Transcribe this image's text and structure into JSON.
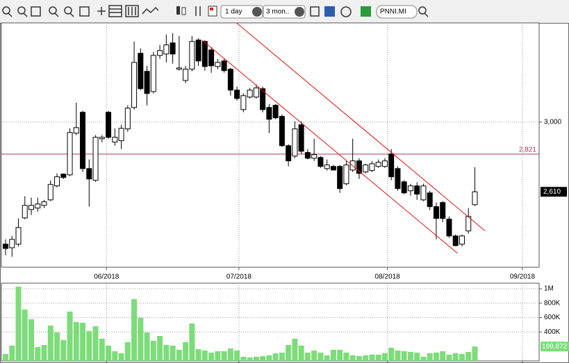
{
  "toolbar": {
    "interval": "1 day",
    "range": "3 mon..",
    "symbol": "PNNI.MI"
  },
  "chart_data": [
    {
      "type": "candlestick",
      "categories": [
        null,
        null,
        null,
        null,
        null,
        null,
        null,
        null,
        null,
        null,
        null,
        null,
        null,
        null,
        null,
        null,
        null,
        null,
        null,
        null,
        null,
        null,
        null,
        null,
        null,
        null,
        null,
        null,
        null,
        null,
        null,
        null,
        null,
        null,
        null,
        null,
        null,
        null,
        null,
        null,
        null,
        null,
        null,
        null,
        null,
        null,
        null,
        null,
        null,
        null,
        null,
        null,
        null,
        null,
        null,
        null,
        null,
        null,
        null,
        null,
        null,
        null,
        null,
        null,
        null,
        null,
        null,
        null,
        null,
        null,
        null,
        null,
        null,
        null
      ],
      "open": [
        2317,
        2297,
        2317,
        2464,
        2511,
        2519,
        2534,
        2565,
        2643,
        2709,
        2705,
        2938,
        3055,
        2740,
        2674,
        2907,
        3055,
        2888,
        2896,
        2962,
        3082,
        3385,
        3284,
        3171,
        3373,
        3381,
        3443,
        3296,
        3233,
        3296,
        3459,
        3451,
        3404,
        3311,
        3342,
        3296,
        3179,
        3070,
        3140,
        3140,
        3187,
        3082,
        3094,
        3032,
        2868,
        2810,
        2985,
        2830,
        2798,
        2802,
        2740,
        2752,
        2752,
        2655,
        2732,
        2783,
        2721,
        2729,
        2752,
        2752,
        2822,
        2740,
        2666,
        2616,
        2643,
        2565,
        2604,
        2527,
        2550,
        2457,
        2363,
        2317,
        2391,
        2538
      ],
      "high": [
        2344,
        2363,
        2461,
        2585,
        2577,
        2577,
        2565,
        2674,
        2713,
        2713,
        2965,
        3109,
        3063,
        2791,
        2927,
        2927,
        3063,
        2965,
        2985,
        3094,
        3451,
        3412,
        3315,
        3393,
        3432,
        3490,
        3498,
        3482,
        3315,
        3482,
        3470,
        3459,
        3420,
        3354,
        3354,
        3303,
        3199,
        3160,
        3191,
        3210,
        3199,
        3101,
        3101,
        3043,
        2876,
        3004,
        3004,
        2849,
        2907,
        2810,
        2791,
        2760,
        2760,
        2783,
        2907,
        2798,
        2767,
        2783,
        2791,
        2798,
        2849,
        2752,
        2674,
        2655,
        2663,
        2655,
        2616,
        2550,
        2558,
        2472,
        2371,
        2371,
        2519,
        2748
      ],
      "low": [
        2255,
        2247,
        2305,
        2457,
        2480,
        2499,
        2519,
        2558,
        2635,
        2682,
        2697,
        2927,
        2721,
        2527,
        2666,
        2888,
        2907,
        2868,
        2849,
        2946,
        3070,
        3179,
        3094,
        3160,
        3354,
        3334,
        3327,
        3288,
        3218,
        3284,
        3315,
        3288,
        3276,
        3296,
        3276,
        3148,
        3121,
        3055,
        3132,
        3132,
        3055,
        2938,
        3016,
        2861,
        2752,
        2798,
        2822,
        2791,
        2783,
        2744,
        2729,
        2729,
        2604,
        2647,
        2721,
        2682,
        2713,
        2721,
        2744,
        2744,
        2674,
        2616,
        2597,
        2589,
        2565,
        2558,
        2507,
        2344,
        2441,
        2352,
        2305,
        2305,
        2375,
        2530
      ],
      "close": [
        2293,
        2344,
        2410,
        2534,
        2534,
        2542,
        2554,
        2651,
        2694,
        2690,
        2942,
        2969,
        2740,
        2682,
        2915,
        2915,
        2915,
        2915,
        2965,
        3078,
        3334,
        3187,
        3160,
        3373,
        3400,
        3432,
        3381,
        3303,
        3296,
        3451,
        3342,
        3311,
        3315,
        3334,
        3288,
        3179,
        3132,
        3148,
        3179,
        3191,
        3070,
        3016,
        3024,
        2868,
        2783,
        2962,
        2837,
        2798,
        2818,
        2752,
        2760,
        2732,
        2628,
        2760,
        2783,
        2713,
        2760,
        2767,
        2775,
        2783,
        2694,
        2628,
        2604,
        2643,
        2597,
        2643,
        2527,
        2461,
        2461,
        2363,
        2309,
        2363,
        2472,
        2610
      ],
      "up_color": "#ffffff",
      "down_color": "#000000",
      "xlim": [
        -0.65,
        83
      ],
      "xticks": [
        {
          "value": 15.7,
          "label": "06/2018"
        },
        {
          "value": 36.3,
          "label": "07/2018"
        },
        {
          "value": 59.4,
          "label": "08/2018"
        },
        {
          "value": 80.4,
          "label": "09/2018"
        }
      ],
      "ylim": [
        2188,
        3555
      ],
      "yticks": [
        {
          "value": 3000,
          "label": "3,000"
        }
      ],
      "grid": true,
      "hline": {
        "value": 2821,
        "label": "2,821",
        "color": "#b0305a"
      },
      "lines": [
        {
          "x": [
            30.6,
            70.3
          ],
          "y": [
            3458,
            2266
          ],
          "color": "#e01010"
        },
        {
          "x": [
            35.9,
            74.6
          ],
          "y": [
            3556,
            2391
          ],
          "color": "#e01010"
        }
      ],
      "last": {
        "value": 2610,
        "label": "2,610"
      }
    },
    {
      "type": "bar",
      "values": [
        96000,
        212000,
        1029000,
        712000,
        577000,
        192000,
        221000,
        490000,
        394000,
        288000,
        683000,
        538000,
        529000,
        413000,
        481000,
        308000,
        212000,
        135000,
        106000,
        260000,
        856000,
        596000,
        394000,
        279000,
        346000,
        221000,
        212000,
        154000,
        260000,
        519000,
        163000,
        144000,
        115000,
        135000,
        135000,
        173000,
        144000,
        58000,
        48000,
        58000,
        67000,
        77000,
        106000,
        115000,
        221000,
        308000,
        212000,
        115000,
        144000,
        115000,
        77000,
        154000,
        154000,
        115000,
        77000,
        67000,
        77000,
        87000,
        87000,
        106000,
        183000,
        144000,
        135000,
        125000,
        115000,
        58000,
        106000,
        115000,
        135000,
        87000,
        106000,
        96000,
        125000,
        199872
      ],
      "color": "#7ddc7a",
      "xlim": [
        -0.65,
        83
      ],
      "xticks": [
        15.7,
        36.3,
        59.4,
        80.4
      ],
      "ylim": [
        0,
        1077000
      ],
      "yticks": [
        {
          "value": 400000,
          "label": "400K"
        },
        {
          "value": 600000,
          "label": "600K"
        },
        {
          "value": 800000,
          "label": "800K"
        },
        {
          "value": 1000000,
          "label": "1M"
        }
      ],
      "grid": true,
      "last": {
        "value": 199872,
        "label": "199,872"
      }
    }
  ]
}
